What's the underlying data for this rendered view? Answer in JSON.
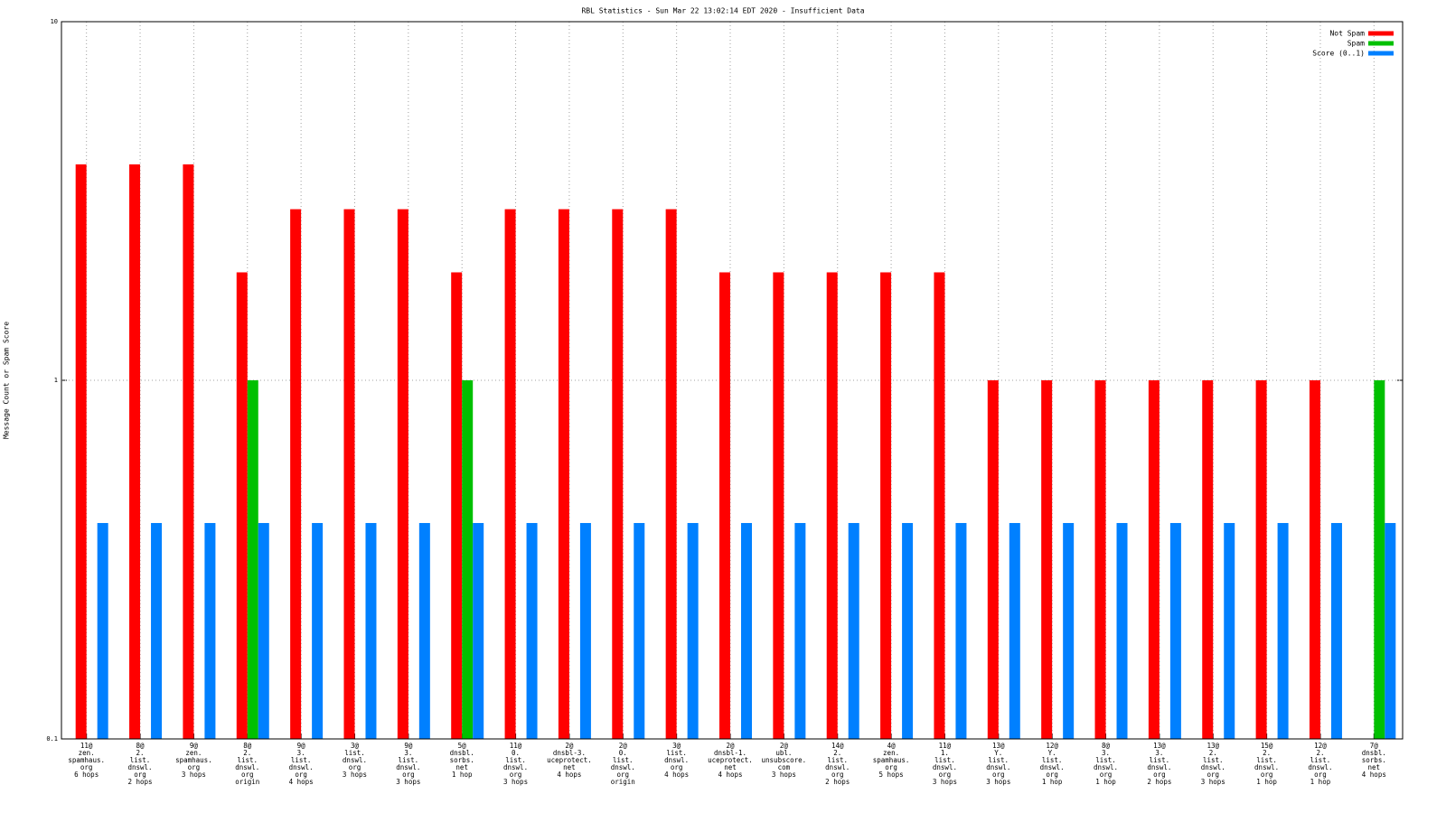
{
  "chart_data": {
    "type": "bar",
    "title": "RBL Statistics - Sun Mar 22 13:02:14 EDT 2020 - Insufficient Data",
    "y_label": "Message Count or Spam Score",
    "log_scale": true,
    "ylim": [
      0.1,
      10
    ],
    "yticks": [
      0.1,
      1,
      10
    ],
    "grid": true,
    "legend_position": "top-right",
    "categories": [
      [
        "11@",
        "zen.",
        "spamhaus.",
        "org",
        "6 hops"
      ],
      [
        "8@",
        "2.",
        "list.",
        "dnswl.",
        "org",
        "2 hops"
      ],
      [
        "9@",
        "zen.",
        "spamhaus.",
        "org",
        "3 hops"
      ],
      [
        "8@",
        "2.",
        "list.",
        "dnswl.",
        "org",
        "origin"
      ],
      [
        "9@",
        "3.",
        "list.",
        "dnswl.",
        "org",
        "4 hops"
      ],
      [
        "3@",
        "list.",
        "dnswl.",
        "org",
        "3 hops"
      ],
      [
        "9@",
        "3.",
        "list.",
        "dnswl.",
        "org",
        "3 hops"
      ],
      [
        "5@",
        "dnsbl.",
        "sorbs.",
        "net",
        "1 hop"
      ],
      [
        "11@",
        "0.",
        "list.",
        "dnswl.",
        "org",
        "3 hops"
      ],
      [
        "2@",
        "dnsbl-3.",
        "uceprotect.",
        "net",
        "4 hops"
      ],
      [
        "2@",
        "0.",
        "list.",
        "dnswl.",
        "org",
        "origin"
      ],
      [
        "3@",
        "list.",
        "dnswl.",
        "org",
        "4 hops"
      ],
      [
        "2@",
        "dnsbl-1.",
        "uceprotect.",
        "net",
        "4 hops"
      ],
      [
        "2@",
        "ubl.",
        "unsubscore.",
        "com",
        "3 hops"
      ],
      [
        "14@",
        "2.",
        "list.",
        "dnswl.",
        "org",
        "2 hops"
      ],
      [
        "4@",
        "zen.",
        "spamhaus.",
        "org",
        "5 hops"
      ],
      [
        "11@",
        "1.",
        "list.",
        "dnswl.",
        "org",
        "3 hops"
      ],
      [
        "13@",
        "Y.",
        "list.",
        "dnswl.",
        "org",
        "3 hops"
      ],
      [
        "12@",
        "Y.",
        "list.",
        "dnswl.",
        "org",
        "1 hop"
      ],
      [
        "8@",
        "3.",
        "list.",
        "dnswl.",
        "org",
        "1 hop"
      ],
      [
        "13@",
        "3.",
        "list.",
        "dnswl.",
        "org",
        "2 hops"
      ],
      [
        "13@",
        "2.",
        "list.",
        "dnswl.",
        "org",
        "3 hops"
      ],
      [
        "15@",
        "2.",
        "list.",
        "dnswl.",
        "org",
        "1 hop"
      ],
      [
        "12@",
        "2.",
        "list.",
        "dnswl.",
        "org",
        "1 hop"
      ],
      [
        "7@",
        "dnsbl.",
        "sorbs.",
        "net",
        "4 hops"
      ]
    ],
    "series": [
      {
        "name": "Not Spam",
        "color": "#ff0000",
        "values": [
          4,
          4,
          4,
          2,
          3,
          3,
          3,
          2,
          3,
          3,
          3,
          3,
          2,
          2,
          2,
          2,
          2,
          1,
          1,
          1,
          1,
          1,
          1,
          1,
          null
        ]
      },
      {
        "name": "Spam",
        "color": "#00c000",
        "values": [
          null,
          null,
          null,
          1,
          null,
          null,
          null,
          1,
          null,
          null,
          null,
          null,
          null,
          null,
          null,
          null,
          null,
          null,
          null,
          null,
          null,
          null,
          null,
          null,
          1
        ]
      },
      {
        "name": "Score (0..1)",
        "color": "#0080ff",
        "values": [
          0.4,
          0.4,
          0.4,
          0.4,
          0.4,
          0.4,
          0.4,
          0.4,
          0.4,
          0.4,
          0.4,
          0.4,
          0.4,
          0.4,
          0.4,
          0.4,
          0.4,
          0.4,
          0.4,
          0.4,
          0.4,
          0.4,
          0.4,
          0.4,
          0.4
        ]
      }
    ]
  }
}
